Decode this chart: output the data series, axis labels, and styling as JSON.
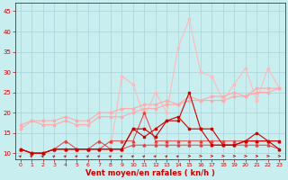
{
  "x": [
    0,
    1,
    2,
    3,
    4,
    5,
    6,
    7,
    8,
    9,
    10,
    11,
    12,
    13,
    14,
    15,
    16,
    17,
    18,
    19,
    20,
    21,
    22,
    23
  ],
  "line_dark1": [
    11,
    10,
    10,
    11,
    11,
    11,
    11,
    11,
    11,
    11,
    16,
    16,
    14,
    18,
    18,
    25,
    16,
    16,
    12,
    12,
    13,
    15,
    13,
    13
  ],
  "line_dark2": [
    11,
    10,
    10,
    11,
    11,
    11,
    11,
    11,
    11,
    11,
    16,
    14,
    16,
    18,
    19,
    16,
    16,
    12,
    12,
    12,
    13,
    13,
    13,
    11
  ],
  "line_med1": [
    11,
    10,
    10,
    11,
    13,
    11,
    11,
    13,
    11,
    11,
    12,
    12,
    12,
    12,
    12,
    12,
    12,
    12,
    12,
    12,
    12,
    12,
    12,
    11
  ],
  "line_med2": [
    11,
    10,
    10,
    11,
    11,
    11,
    11,
    11,
    13,
    13,
    13,
    20,
    13,
    13,
    13,
    13,
    13,
    13,
    13,
    13,
    13,
    13,
    13,
    13
  ],
  "line_light1": [
    17,
    18,
    17,
    17,
    18,
    17,
    17,
    19,
    19,
    19,
    20,
    21,
    21,
    22,
    22,
    23,
    23,
    23,
    23,
    24,
    24,
    25,
    25,
    26
  ],
  "line_light2": [
    16,
    18,
    18,
    18,
    19,
    18,
    18,
    20,
    20,
    21,
    21,
    22,
    22,
    23,
    22,
    24,
    23,
    24,
    24,
    25,
    24,
    26,
    26,
    26
  ],
  "line_lightest": [
    11,
    10,
    10,
    11,
    11,
    11,
    11,
    11,
    11,
    29,
    27,
    19,
    25,
    20,
    36,
    43,
    30,
    29,
    23,
    27,
    31,
    23,
    31,
    26
  ],
  "bg_color": "#c8eef0",
  "grid_color": "#aad4d8",
  "color_dark": "#cc0000",
  "color_med": "#dd4444",
  "color_light": "#ffaaaa",
  "color_lightest": "#ffbbbb",
  "xlabel": "Vent moyen/en rafales ( kn/h )",
  "ylim": [
    8.5,
    47
  ],
  "xlim": [
    -0.5,
    23.5
  ],
  "yticks": [
    10,
    15,
    20,
    25,
    30,
    35,
    40,
    45
  ],
  "xticks": [
    0,
    1,
    2,
    3,
    4,
    5,
    6,
    7,
    8,
    9,
    10,
    11,
    12,
    13,
    14,
    15,
    16,
    17,
    18,
    19,
    20,
    21,
    22,
    23
  ],
  "arrow_dirs_diagonal": [
    0,
    1,
    2,
    3,
    4,
    5,
    6,
    7,
    8,
    9,
    10,
    11,
    12,
    13,
    14,
    15,
    16,
    17,
    18,
    19,
    20,
    21,
    22,
    23
  ],
  "arrow_angled": [
    0,
    1,
    2,
    3,
    4,
    5,
    6,
    7,
    8,
    9,
    10,
    11,
    12,
    13,
    14
  ],
  "arrow_horiz": [
    15,
    16,
    17,
    18,
    19,
    20,
    21,
    22,
    23
  ]
}
